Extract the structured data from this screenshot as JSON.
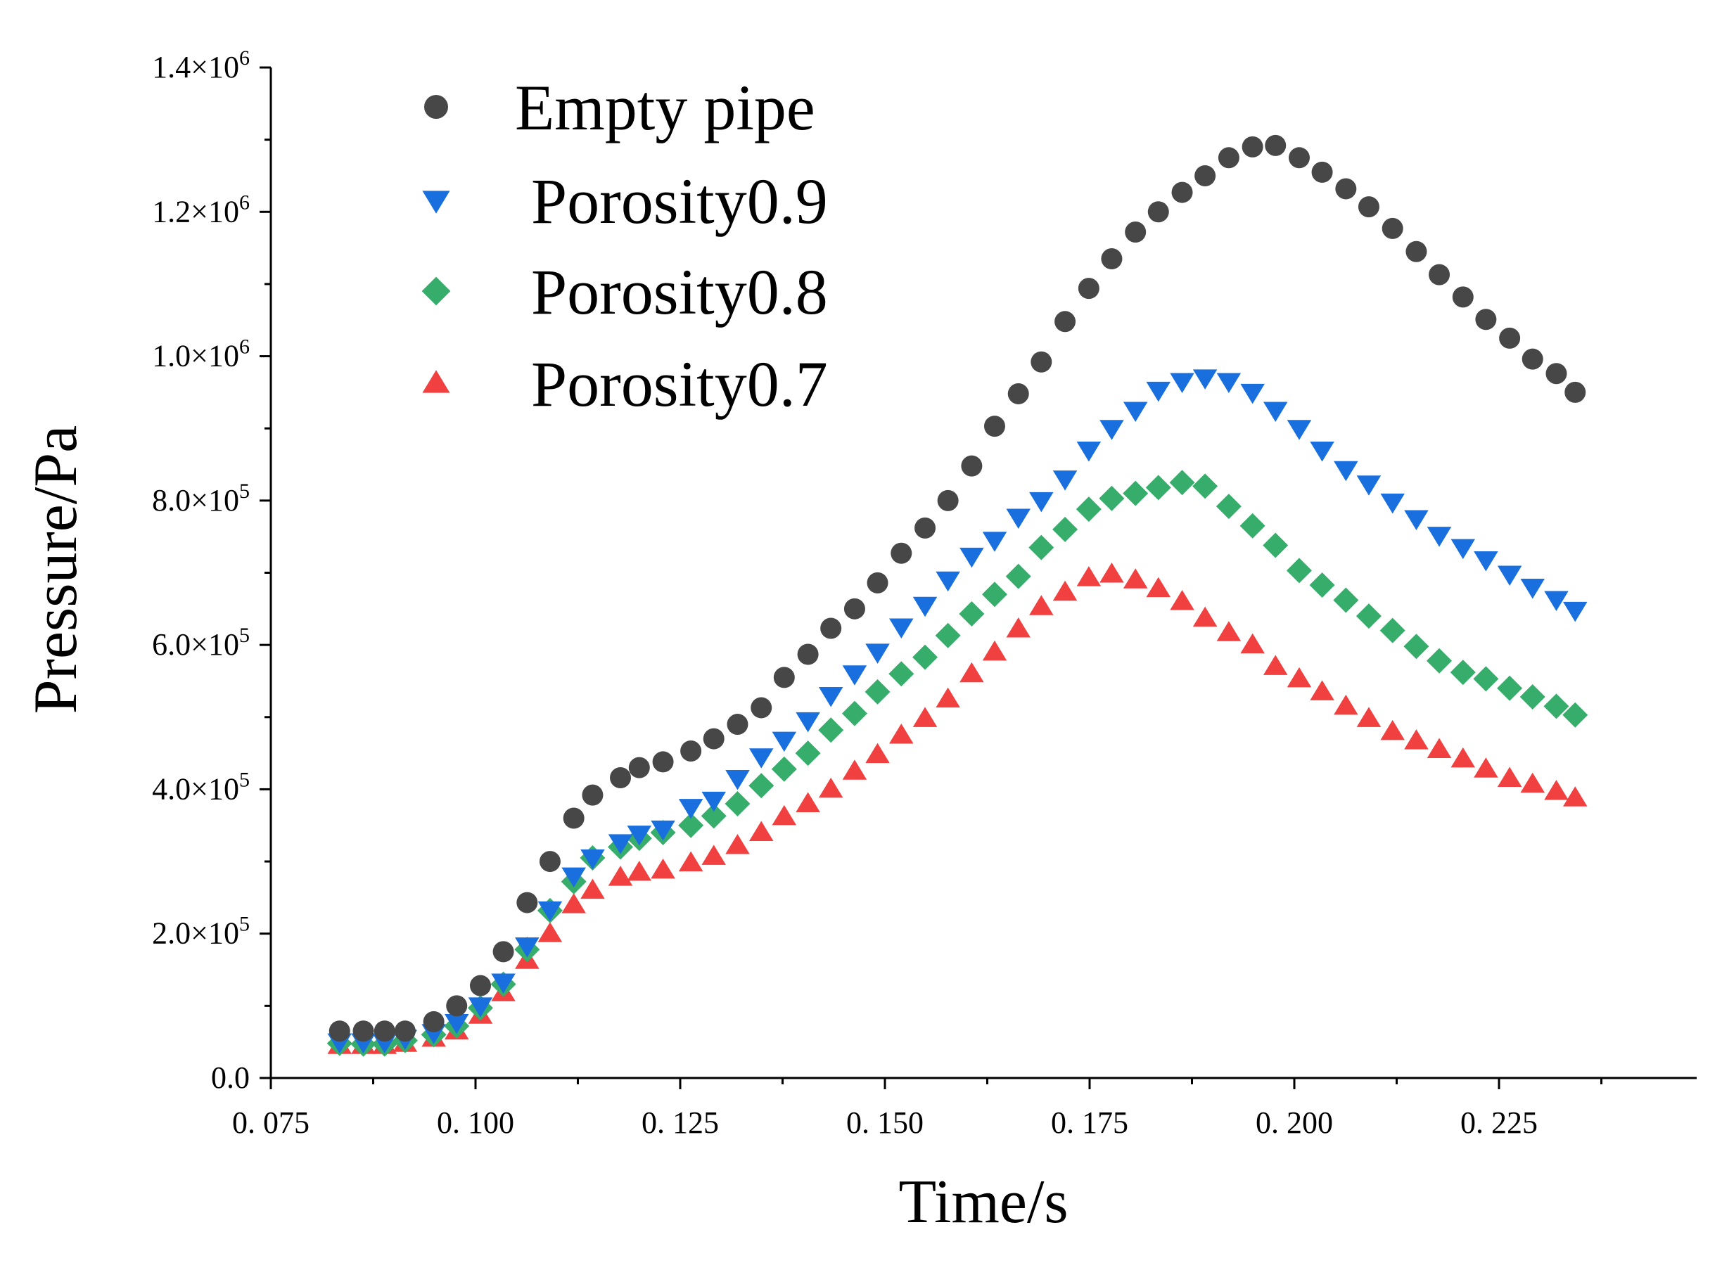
{
  "chart_data": {
    "type": "scatter",
    "title": "",
    "xlabel": "Time/s",
    "ylabel": "Pressure/Pa",
    "xlim": [
      0.075,
      0.25
    ],
    "ylim": [
      0,
      1400000
    ],
    "grid": false,
    "legend_position": "top-left",
    "x_ticks": [
      {
        "value": 0.075,
        "label": "0. 075"
      },
      {
        "value": 0.1,
        "label": "0. 100"
      },
      {
        "value": 0.125,
        "label": "0. 125"
      },
      {
        "value": 0.15,
        "label": "0. 150"
      },
      {
        "value": 0.175,
        "label": "0. 175"
      },
      {
        "value": 0.2,
        "label": "0. 200"
      },
      {
        "value": 0.225,
        "label": "0. 225"
      }
    ],
    "y_ticks": [
      {
        "value": 0,
        "mantissa": "0.0",
        "exponent": ""
      },
      {
        "value": 200000,
        "mantissa": "2.0×10",
        "exponent": "5"
      },
      {
        "value": 400000,
        "mantissa": "4.0×10",
        "exponent": "5"
      },
      {
        "value": 600000,
        "mantissa": "6.0×10",
        "exponent": "5"
      },
      {
        "value": 800000,
        "mantissa": "8.0×10",
        "exponent": "5"
      },
      {
        "value": 1000000,
        "mantissa": "1.0×10",
        "exponent": "6"
      },
      {
        "value": 1200000,
        "mantissa": "1.2×10",
        "exponent": "6"
      },
      {
        "value": 1400000,
        "mantissa": "1.4×10",
        "exponent": "6"
      }
    ],
    "x": [
      0.0834,
      0.0863,
      0.0889,
      0.0914,
      0.0949,
      0.0977,
      0.1006,
      0.1034,
      0.1063,
      0.1091,
      0.112,
      0.1143,
      0.1177,
      0.12,
      0.1229,
      0.1263,
      0.1291,
      0.132,
      0.1349,
      0.1377,
      0.1406,
      0.1434,
      0.1463,
      0.1491,
      0.152,
      0.1549,
      0.1577,
      0.1606,
      0.1634,
      0.1663,
      0.1691,
      0.172,
      0.1749,
      0.1777,
      0.1806,
      0.1834,
      0.1863,
      0.1891,
      0.192,
      0.1949,
      0.1977,
      0.2006,
      0.2034,
      0.2063,
      0.2091,
      0.212,
      0.2149,
      0.2177,
      0.2206,
      0.2234,
      0.2263,
      0.2291,
      0.232,
      0.2343
    ],
    "series": [
      {
        "name": "Empty pipe",
        "marker": "circle",
        "color": "#474747",
        "values": [
          65000,
          65000,
          65000,
          65000,
          78000,
          100000,
          128000,
          175000,
          243000,
          300000,
          360000,
          392000,
          416000,
          430000,
          438000,
          453000,
          470000,
          490000,
          513000,
          555000,
          587000,
          623000,
          650000,
          686000,
          727000,
          762000,
          800000,
          848000,
          903000,
          948000,
          992000,
          1048000,
          1094000,
          1135000,
          1172000,
          1200000,
          1227000,
          1250000,
          1275000,
          1290000,
          1292000,
          1275000,
          1255000,
          1232000,
          1207000,
          1177000,
          1145000,
          1113000,
          1082000,
          1051000,
          1025000,
          996000,
          976000,
          950000
        ]
      },
      {
        "name": " Porosity0.9",
        "marker": "triangle-down",
        "color": "#1a6fdf",
        "values": [
          50000,
          50000,
          50000,
          55000,
          63000,
          77000,
          100000,
          133000,
          183000,
          233000,
          280000,
          305000,
          326000,
          338000,
          345000,
          375000,
          385000,
          415000,
          445000,
          468000,
          495000,
          530000,
          560000,
          590000,
          625000,
          655000,
          690000,
          723000,
          745000,
          777000,
          800000,
          830000,
          870000,
          900000,
          925000,
          953000,
          965000,
          970000,
          965000,
          950000,
          925000,
          900000,
          870000,
          843000,
          823000,
          798000,
          775000,
          752000,
          735000,
          718000,
          698000,
          680000,
          663000,
          648000
        ]
      },
      {
        "name": " Porosity0.8",
        "marker": "diamond",
        "color": "#37ad6b",
        "values": [
          48000,
          47000,
          47000,
          52000,
          60000,
          72000,
          97000,
          130000,
          178000,
          232000,
          272000,
          305000,
          320000,
          332000,
          340000,
          350000,
          363000,
          380000,
          405000,
          428000,
          450000,
          482000,
          505000,
          535000,
          560000,
          583000,
          613000,
          643000,
          670000,
          695000,
          735000,
          760000,
          788000,
          803000,
          810000,
          818000,
          825000,
          820000,
          792000,
          765000,
          738000,
          703000,
          683000,
          662000,
          640000,
          620000,
          598000,
          578000,
          562000,
          553000,
          540000,
          528000,
          515000,
          503000
        ]
      },
      {
        "name": " Porosity0.7",
        "marker": "triangle-up",
        "color": "#f14040",
        "values": [
          45000,
          45000,
          45000,
          48000,
          55000,
          65000,
          87000,
          118000,
          163000,
          200000,
          240000,
          260000,
          278000,
          285000,
          288000,
          298000,
          307000,
          322000,
          340000,
          362000,
          380000,
          400000,
          425000,
          448000,
          475000,
          498000,
          525000,
          560000,
          590000,
          622000,
          653000,
          673000,
          693000,
          698000,
          690000,
          678000,
          660000,
          637000,
          617000,
          600000,
          570000,
          553000,
          535000,
          515000,
          498000,
          480000,
          467000,
          455000,
          442000,
          428000,
          415000,
          407000,
          397000,
          388000
        ]
      }
    ]
  }
}
